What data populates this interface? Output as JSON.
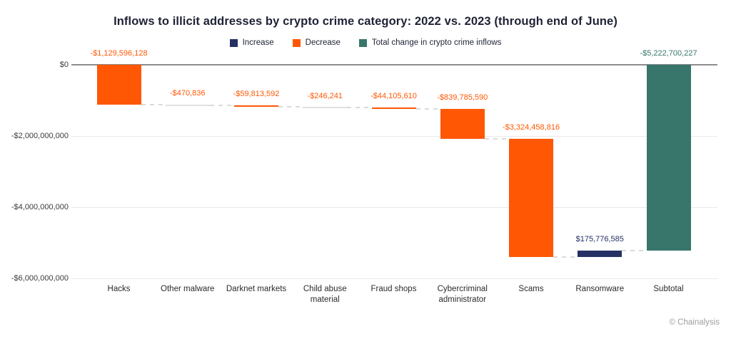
{
  "page": {
    "credit": "© Chainalysis"
  },
  "chart_data": {
    "type": "bar",
    "subtype": "waterfall",
    "title": "Inflows to illicit addresses by crypto crime category: 2022 vs. 2023 (through end of June)",
    "legend_position": "top",
    "grid": true,
    "ylim": [
      -6000000000,
      0
    ],
    "y_ticks": [
      {
        "label": "$0",
        "value": 0
      },
      {
        "label": "-$2,000,000,000",
        "value": -2000000000
      },
      {
        "label": "-$4,000,000,000",
        "value": -4000000000
      },
      {
        "label": "-$6,000,000,000",
        "value": -6000000000
      }
    ],
    "categories": [
      "Hacks",
      "Other malware",
      "Darknet markets",
      "Child abuse material",
      "Fraud shops",
      "Cybercriminal administrator",
      "Scams",
      "Ransomware",
      "Subtotal"
    ],
    "series": [
      {
        "name": "Change in crypto crime inflows",
        "values": [
          -1129596128,
          -470836,
          -59813592,
          -246241,
          -44105610,
          -839785590,
          -3324458816,
          175776585,
          -5222700227
        ],
        "kinds": [
          "decrease",
          "decrease",
          "decrease",
          "decrease",
          "decrease",
          "decrease",
          "decrease",
          "increase",
          "total"
        ],
        "labels": [
          "-$1,129,596,128",
          "-$470,836",
          "-$59,813,592",
          "-$246,241",
          "-$44,105,610",
          "-$839,785,590",
          "-$3,324,458,816",
          "$175,776,585",
          "-$5,222,700,227"
        ]
      }
    ],
    "legend": [
      {
        "label": "Increase",
        "kind": "increase"
      },
      {
        "label": "Decrease",
        "kind": "decrease"
      },
      {
        "label": "Total change in crypto crime inflows",
        "kind": "total"
      }
    ],
    "colors": {
      "increase": "#253165",
      "decrease": "#FF5703",
      "total": "#38766B"
    }
  }
}
